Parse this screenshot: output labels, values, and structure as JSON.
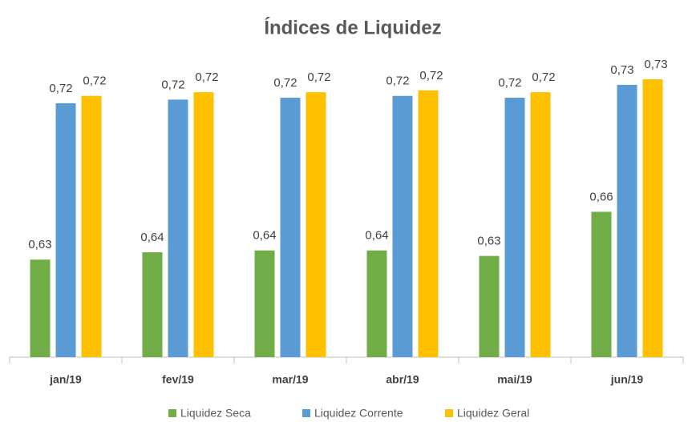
{
  "chart_data": {
    "type": "bar",
    "title": "Índices de Liquidez",
    "categories": [
      "jan/19",
      "fev/19",
      "mar/19",
      "abr/19",
      "mai/19",
      "jun/19"
    ],
    "series": [
      {
        "name": "Liquidez Seca",
        "color": "#70ad47",
        "values": [
          0.632,
          0.636,
          0.637,
          0.637,
          0.634,
          0.658
        ],
        "value_labels": [
          "0,63",
          "0,64",
          "0,64",
          "0,64",
          "0,63",
          "0,66"
        ]
      },
      {
        "name": "Liquidez Corrente",
        "color": "#5b9bd5",
        "values": [
          0.717,
          0.719,
          0.72,
          0.721,
          0.72,
          0.727
        ],
        "value_labels": [
          "0,72",
          "0,72",
          "0,72",
          "0,72",
          "0,72",
          "0,73"
        ]
      },
      {
        "name": "Liquidez Geral",
        "color": "#ffc000",
        "values": [
          0.721,
          0.723,
          0.723,
          0.724,
          0.723,
          0.73
        ],
        "value_labels": [
          "0,72",
          "0,72",
          "0,72",
          "0,72",
          "0,72",
          "0,73"
        ]
      }
    ],
    "ylim": [
      0.579,
      0.747
    ],
    "legend": "bottom"
  }
}
